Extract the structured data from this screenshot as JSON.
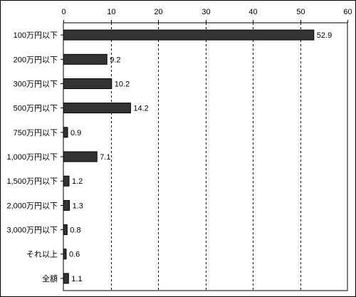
{
  "chart_data": {
    "type": "bar",
    "orientation": "horizontal",
    "categories": [
      "100万円以下",
      "200万円以下",
      "300万円以下",
      "500万円以下",
      "750万円以下",
      "1,000万円以下",
      "1,500万円以下",
      "2,000万円以下",
      "3,000万円以下",
      "それ以上",
      "全額"
    ],
    "values": [
      52.9,
      9.2,
      10.2,
      14.2,
      0.9,
      7.1,
      1.2,
      1.3,
      0.8,
      0.6,
      1.1
    ],
    "value_labels": [
      "52.9",
      "9.2",
      "10.2",
      "14.2",
      "0.9",
      "7.1",
      "1.2",
      "1.3",
      "0.8",
      "0.6",
      "1.1"
    ],
    "xticks": [
      0,
      10,
      20,
      30,
      40,
      50,
      60
    ],
    "xlim": [
      0,
      60
    ],
    "title": "",
    "xlabel": "",
    "ylabel": "",
    "grid": "dashed vertical",
    "legend": "none",
    "bar_color": "#333333",
    "grid_color": "#000000"
  }
}
